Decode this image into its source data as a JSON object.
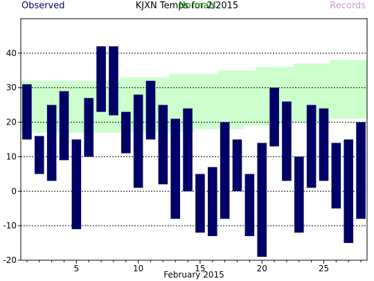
{
  "chart_data": {
    "type": "bar",
    "title": "KJXN Temps for 2/2015",
    "xlabel": "February 2015",
    "ylabel": "",
    "xlim": [
      0.5,
      28.5
    ],
    "ylim": [
      -20,
      50
    ],
    "yticks": [
      -20,
      -10,
      0,
      10,
      20,
      30,
      40
    ],
    "xticks": [
      5,
      10,
      15,
      20,
      25
    ],
    "grid": "dashed horizontal at y ticks",
    "legend": {
      "position": "top",
      "entries": [
        {
          "label": "Observed",
          "color": "#000066"
        },
        {
          "label": "Normals",
          "color": "#008000"
        },
        {
          "label": "Records",
          "color": "#cc99cc"
        }
      ]
    },
    "normals": {
      "color": "#ccffcc",
      "days": [
        1,
        2,
        3,
        4,
        5,
        6,
        7,
        8,
        9,
        10,
        11,
        12,
        13,
        14,
        15,
        16,
        17,
        18,
        19,
        20,
        21,
        22,
        23,
        24,
        25,
        26,
        27,
        28
      ],
      "low": [
        17,
        17,
        17,
        17,
        17,
        17,
        17,
        17,
        17,
        17,
        17,
        17,
        17,
        17,
        18,
        18,
        18,
        18,
        19,
        19,
        19,
        20,
        20,
        20,
        20,
        21,
        21,
        21
      ],
      "high": [
        32,
        32,
        32,
        32,
        32,
        32,
        32,
        32,
        33,
        33,
        33,
        33,
        34,
        34,
        34,
        34,
        35,
        35,
        35,
        36,
        36,
        36,
        37,
        37,
        37,
        38,
        38,
        38
      ]
    },
    "series": [
      {
        "name": "Observed",
        "color": "#000066",
        "days": [
          1,
          2,
          3,
          4,
          5,
          6,
          7,
          8,
          9,
          10,
          11,
          12,
          13,
          14,
          15,
          16,
          17,
          18,
          19,
          20,
          21,
          22,
          23,
          24,
          25,
          26,
          27,
          28
        ],
        "high": [
          31,
          16,
          25,
          29,
          15,
          27,
          42,
          42,
          23,
          28,
          32,
          25,
          21,
          24,
          5,
          7,
          20,
          15,
          5,
          14,
          30,
          26,
          10,
          25,
          24,
          14,
          15,
          20
        ],
        "low": [
          15,
          5,
          3,
          9,
          -11,
          10,
          23,
          22,
          11,
          1,
          15,
          2,
          -8,
          0,
          -12,
          -13,
          -8,
          0,
          -13,
          -19,
          13,
          3,
          -12,
          1,
          3,
          -5,
          -15,
          -8
        ]
      }
    ]
  }
}
